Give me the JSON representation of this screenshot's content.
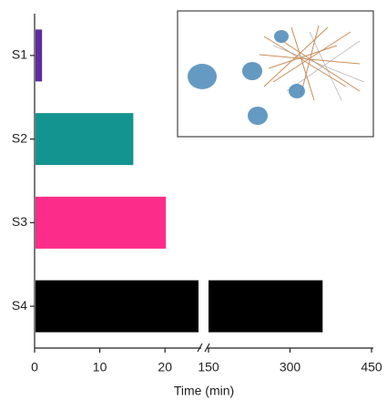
{
  "chart_data": {
    "type": "bar",
    "orientation": "horizontal",
    "x_label": "Time (min)",
    "categories": [
      "S1",
      "S2",
      "S3",
      "S4"
    ],
    "values": [
      1,
      15,
      20,
      360
    ],
    "colors": [
      "#5b2d9e",
      "#139491",
      "#fc2d8a",
      "#000000"
    ],
    "segments": [
      {
        "xlim": [
          0,
          25
        ],
        "xticks": [
          0,
          10,
          20
        ]
      },
      {
        "xlim": [
          150,
          450
        ],
        "xticks": [
          150,
          300,
          450
        ]
      }
    ]
  }
}
